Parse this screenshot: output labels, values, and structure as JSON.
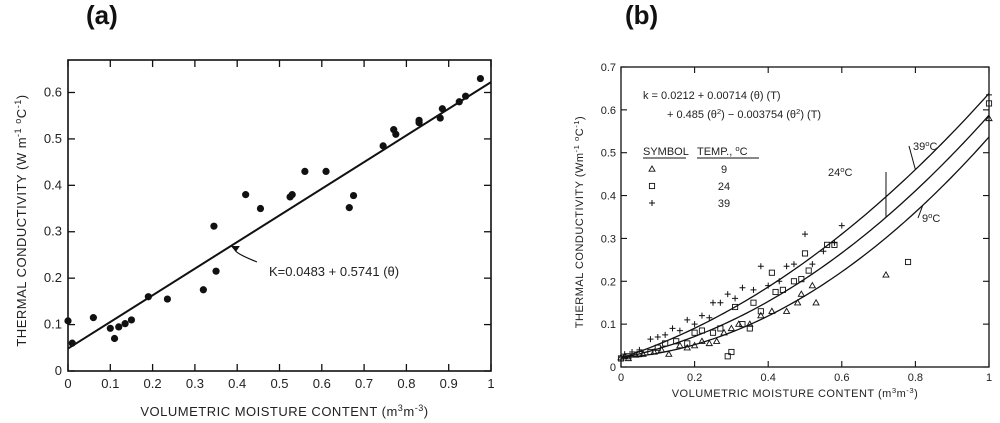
{
  "panels": {
    "a_label": "(a)",
    "b_label": "(b)"
  },
  "chart_data": [
    {
      "type": "scatter",
      "panel": "(a)",
      "xlabel": "VOLUMETRIC MOISTURE CONTENT (m³m⁻³)",
      "ylabel": "THERMAL CONDUCTIVITY (W m⁻¹ °C⁻¹)",
      "xlim": [
        0,
        1
      ],
      "ylim": [
        0,
        0.67
      ],
      "xticks": [
        0,
        0.1,
        0.2,
        0.3,
        0.4,
        0.5,
        0.6,
        0.7,
        0.8,
        0.9,
        1
      ],
      "xtick_labels": [
        "0",
        "0.1",
        "0.2",
        "0.3",
        "0.4",
        "0.5",
        "0.6",
        "0.7",
        "0.8",
        "0.9",
        "1"
      ],
      "yticks": [
        0,
        0.1,
        0.2,
        0.3,
        0.4,
        0.5,
        0.6
      ],
      "ytick_labels": [
        "0",
        "0.1",
        "0.2",
        "0.3",
        "0.4",
        "0.5",
        "0.6"
      ],
      "grid": false,
      "points": [
        [
          0.0,
          0.108
        ],
        [
          0.01,
          0.06
        ],
        [
          0.06,
          0.115
        ],
        [
          0.1,
          0.092
        ],
        [
          0.11,
          0.07
        ],
        [
          0.12,
          0.095
        ],
        [
          0.135,
          0.102
        ],
        [
          0.15,
          0.11
        ],
        [
          0.19,
          0.16
        ],
        [
          0.235,
          0.155
        ],
        [
          0.32,
          0.175
        ],
        [
          0.345,
          0.312
        ],
        [
          0.35,
          0.215
        ],
        [
          0.42,
          0.38
        ],
        [
          0.455,
          0.35
        ],
        [
          0.525,
          0.375
        ],
        [
          0.53,
          0.38
        ],
        [
          0.56,
          0.43
        ],
        [
          0.61,
          0.43
        ],
        [
          0.665,
          0.352
        ],
        [
          0.675,
          0.378
        ],
        [
          0.745,
          0.485
        ],
        [
          0.77,
          0.52
        ],
        [
          0.775,
          0.51
        ],
        [
          0.83,
          0.535
        ],
        [
          0.83,
          0.54
        ],
        [
          0.88,
          0.545
        ],
        [
          0.885,
          0.565
        ],
        [
          0.925,
          0.58
        ],
        [
          0.94,
          0.592
        ],
        [
          0.975,
          0.63
        ]
      ],
      "fit_line": {
        "intercept": 0.0483,
        "slope": 0.5741
      },
      "annotation": "K=0.0483 + 0.5741 (θ)"
    },
    {
      "type": "scatter",
      "panel": "(b)",
      "xlabel": "VOLUMETRIC MOISTURE CONTENT (m³m⁻³)",
      "ylabel": "THERMAL CONDUCTIVITY (Wm⁻¹ °C⁻¹)",
      "xlim": [
        0,
        1
      ],
      "ylim": [
        0,
        0.7
      ],
      "xticks": [
        0,
        0.2,
        0.4,
        0.6,
        0.8,
        1
      ],
      "xtick_labels": [
        "0",
        "0.2",
        "0.4",
        "0.6",
        "0.8",
        "1"
      ],
      "yticks": [
        0,
        0.1,
        0.2,
        0.3,
        0.4,
        0.5,
        0.6,
        0.7
      ],
      "ytick_labels": [
        "0",
        "0.1",
        "0.2",
        "0.3",
        "0.4",
        "0.5",
        "0.6",
        "0.7"
      ],
      "grid": false,
      "equation_line1": "k = 0.0212 + 0.00714 (θ) (T)",
      "equation_line2": "+ 0.485 (θ²) − 0.003754 (θ²) (T)",
      "model": {
        "a": 0.0212,
        "b": 0.00714,
        "c": 0.485,
        "d": -0.003754
      },
      "legend": {
        "header_symbol": "SYMBOL",
        "header_temp": "TEMP., °C",
        "entries": [
          {
            "symbol": "triangle",
            "temp": "9"
          },
          {
            "symbol": "square",
            "temp": "24"
          },
          {
            "symbol": "plus",
            "temp": "39"
          }
        ]
      },
      "curves": [
        {
          "label": "39°C",
          "T": 39
        },
        {
          "label": "24°C",
          "T": 24
        },
        {
          "label": "9°C",
          "T": 9
        }
      ],
      "series": [
        {
          "marker": "triangle",
          "temp": 9,
          "points": [
            [
              0.0,
              0.022
            ],
            [
              0.01,
              0.025
            ],
            [
              0.02,
              0.02
            ],
            [
              0.04,
              0.028
            ],
            [
              0.06,
              0.03
            ],
            [
              0.09,
              0.035
            ],
            [
              0.11,
              0.04
            ],
            [
              0.13,
              0.03
            ],
            [
              0.16,
              0.05
            ],
            [
              0.18,
              0.045
            ],
            [
              0.2,
              0.05
            ],
            [
              0.22,
              0.06
            ],
            [
              0.24,
              0.055
            ],
            [
              0.26,
              0.06
            ],
            [
              0.28,
              0.08
            ],
            [
              0.3,
              0.09
            ],
            [
              0.32,
              0.1
            ],
            [
              0.35,
              0.1
            ],
            [
              0.38,
              0.12
            ],
            [
              0.41,
              0.13
            ],
            [
              0.45,
              0.13
            ],
            [
              0.48,
              0.15
            ],
            [
              0.49,
              0.17
            ],
            [
              0.52,
              0.19
            ],
            [
              0.53,
              0.15
            ],
            [
              0.72,
              0.215
            ],
            [
              1.0,
              0.58
            ]
          ]
        },
        {
          "marker": "square",
          "temp": 24,
          "points": [
            [
              0.0,
              0.02
            ],
            [
              0.02,
              0.025
            ],
            [
              0.05,
              0.03
            ],
            [
              0.08,
              0.035
            ],
            [
              0.1,
              0.045
            ],
            [
              0.12,
              0.055
            ],
            [
              0.15,
              0.06
            ],
            [
              0.18,
              0.055
            ],
            [
              0.2,
              0.08
            ],
            [
              0.22,
              0.085
            ],
            [
              0.25,
              0.08
            ],
            [
              0.27,
              0.09
            ],
            [
              0.29,
              0.025
            ],
            [
              0.3,
              0.035
            ],
            [
              0.31,
              0.14
            ],
            [
              0.33,
              0.1
            ],
            [
              0.35,
              0.09
            ],
            [
              0.36,
              0.15
            ],
            [
              0.38,
              0.13
            ],
            [
              0.41,
              0.22
            ],
            [
              0.42,
              0.175
            ],
            [
              0.44,
              0.18
            ],
            [
              0.47,
              0.2
            ],
            [
              0.49,
              0.205
            ],
            [
              0.5,
              0.265
            ],
            [
              0.51,
              0.225
            ],
            [
              0.56,
              0.285
            ],
            [
              0.58,
              0.285
            ],
            [
              0.78,
              0.245
            ],
            [
              1.0,
              0.615
            ]
          ]
        },
        {
          "marker": "plus",
          "temp": 39,
          "points": [
            [
              0.01,
              0.03
            ],
            [
              0.03,
              0.035
            ],
            [
              0.05,
              0.04
            ],
            [
              0.08,
              0.065
            ],
            [
              0.1,
              0.07
            ],
            [
              0.12,
              0.075
            ],
            [
              0.14,
              0.09
            ],
            [
              0.16,
              0.085
            ],
            [
              0.18,
              0.11
            ],
            [
              0.2,
              0.1
            ],
            [
              0.22,
              0.12
            ],
            [
              0.24,
              0.115
            ],
            [
              0.25,
              0.15
            ],
            [
              0.27,
              0.15
            ],
            [
              0.29,
              0.17
            ],
            [
              0.31,
              0.16
            ],
            [
              0.33,
              0.185
            ],
            [
              0.36,
              0.18
            ],
            [
              0.38,
              0.235
            ],
            [
              0.4,
              0.19
            ],
            [
              0.43,
              0.2
            ],
            [
              0.45,
              0.235
            ],
            [
              0.47,
              0.24
            ],
            [
              0.5,
              0.31
            ],
            [
              0.52,
              0.24
            ],
            [
              0.55,
              0.27
            ],
            [
              0.58,
              0.29
            ],
            [
              0.6,
              0.33
            ],
            [
              1.0,
              0.635
            ]
          ]
        }
      ]
    }
  ]
}
